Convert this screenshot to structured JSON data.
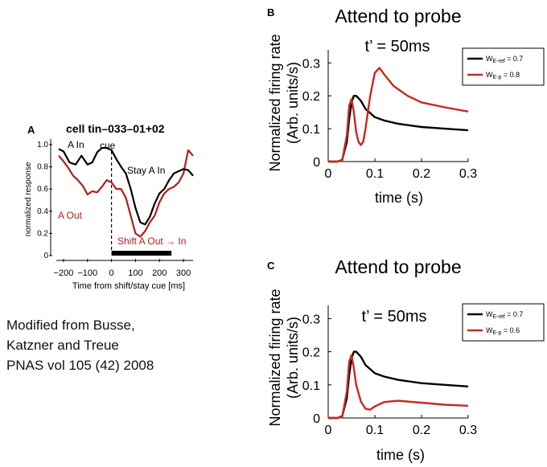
{
  "chart_data": [
    {
      "type": "line",
      "panel": "A",
      "title": "cell tin–033–01+02",
      "xlabel": "Time from shift/stay cue [ms]",
      "ylabel": "normalized response",
      "xlim": [
        -230,
        340
      ],
      "ylim": [
        0,
        1.05
      ],
      "xticks": [
        "−200",
        "−100",
        "0",
        "100",
        "200",
        "300"
      ],
      "yticks": [
        "0",
        "0.2",
        "0.4",
        "0.6",
        "0.8",
        "1.0"
      ],
      "series": [
        {
          "name": "A In / Stay A In",
          "color": "#000000",
          "x": [
            -220,
            -200,
            -175,
            -150,
            -125,
            -100,
            -80,
            -60,
            -40,
            -20,
            0,
            20,
            40,
            60,
            80,
            100,
            120,
            140,
            160,
            180,
            200,
            220,
            240,
            260,
            280,
            300,
            320,
            340
          ],
          "y": [
            0.96,
            0.94,
            0.84,
            0.82,
            0.9,
            0.82,
            0.84,
            0.93,
            0.97,
            0.97,
            0.95,
            0.87,
            0.8,
            0.74,
            0.6,
            0.43,
            0.3,
            0.28,
            0.35,
            0.47,
            0.56,
            0.6,
            0.68,
            0.74,
            0.76,
            0.78,
            0.77,
            0.72
          ]
        },
        {
          "name": "A Out / Shift A Out → In",
          "color": "#b01e1e",
          "x": [
            -220,
            -200,
            -180,
            -160,
            -140,
            -120,
            -100,
            -80,
            -60,
            -40,
            -20,
            0,
            20,
            40,
            60,
            80,
            100,
            120,
            140,
            160,
            180,
            200,
            220,
            240,
            260,
            280,
            300,
            320,
            340
          ],
          "y": [
            0.9,
            0.85,
            0.79,
            0.72,
            0.68,
            0.63,
            0.55,
            0.58,
            0.57,
            0.62,
            0.68,
            0.66,
            0.6,
            0.6,
            0.52,
            0.36,
            0.2,
            0.17,
            0.22,
            0.3,
            0.36,
            0.48,
            0.56,
            0.6,
            0.62,
            0.66,
            0.74,
            0.95,
            0.9
          ]
        }
      ],
      "annotations": [
        "A In",
        "cue",
        "Stay A In",
        "A Out",
        "Shift A Out → In"
      ],
      "shaded_interval_ms": [
        0,
        250
      ],
      "cue_line_ms": 0
    },
    {
      "type": "line",
      "panel": "B",
      "title": "Attend to probe",
      "subtitle": "t’ = 50ms",
      "xlabel": "time (s)",
      "ylabel": "Normalized firing rate (Arb. units/s)",
      "xlim": [
        0,
        0.3
      ],
      "ylim": [
        0,
        0.33
      ],
      "xticks": [
        "0",
        "0.1",
        "0.2",
        "0.3"
      ],
      "yticks": [
        "0",
        "0.1",
        "0.2",
        "0.3"
      ],
      "series": [
        {
          "name_prefix": "W",
          "name_sub": "E-ref",
          "name_suffix": " = 0.7",
          "color": "#000000",
          "x": [
            0,
            0.02,
            0.03,
            0.04,
            0.045,
            0.05,
            0.055,
            0.06,
            0.07,
            0.08,
            0.1,
            0.12,
            0.15,
            0.2,
            0.25,
            0.3
          ],
          "y": [
            0,
            0,
            0.005,
            0.06,
            0.13,
            0.18,
            0.2,
            0.2,
            0.185,
            0.16,
            0.135,
            0.125,
            0.115,
            0.105,
            0.1,
            0.095
          ]
        },
        {
          "name_prefix": "W",
          "name_sub": "E-p",
          "name_suffix": " = 0.8",
          "color": "#c8281e",
          "x": [
            0,
            0.02,
            0.03,
            0.04,
            0.045,
            0.05,
            0.055,
            0.06,
            0.065,
            0.07,
            0.075,
            0.08,
            0.09,
            0.1,
            0.11,
            0.12,
            0.14,
            0.17,
            0.2,
            0.25,
            0.3
          ],
          "y": [
            0,
            0,
            0.003,
            0.08,
            0.17,
            0.19,
            0.15,
            0.09,
            0.06,
            0.05,
            0.06,
            0.1,
            0.2,
            0.27,
            0.285,
            0.265,
            0.23,
            0.2,
            0.18,
            0.165,
            0.152
          ]
        }
      ]
    },
    {
      "type": "line",
      "panel": "C",
      "title": "Attend to probe",
      "subtitle": "t’ = 50ms",
      "xlabel": "time (s)",
      "ylabel": "Normalized firing rate (Arb. units/s)",
      "xlim": [
        0,
        0.3
      ],
      "ylim": [
        0,
        0.33
      ],
      "xticks": [
        "0",
        "0.1",
        "0.2",
        "0.3"
      ],
      "yticks": [
        "0",
        "0.1",
        "0.2",
        "0.3"
      ],
      "series": [
        {
          "name_prefix": "W",
          "name_sub": "E-ref",
          "name_suffix": " = 0.7",
          "color": "#000000",
          "x": [
            0,
            0.02,
            0.03,
            0.04,
            0.045,
            0.05,
            0.055,
            0.06,
            0.07,
            0.08,
            0.1,
            0.12,
            0.15,
            0.2,
            0.25,
            0.3
          ],
          "y": [
            0,
            0,
            0.005,
            0.06,
            0.13,
            0.18,
            0.2,
            0.2,
            0.185,
            0.16,
            0.135,
            0.125,
            0.115,
            0.105,
            0.1,
            0.095
          ]
        },
        {
          "name_prefix": "W",
          "name_sub": "E-p",
          "name_suffix": " = 0.6",
          "color": "#c8281e",
          "x": [
            0,
            0.02,
            0.03,
            0.04,
            0.045,
            0.05,
            0.055,
            0.06,
            0.07,
            0.08,
            0.09,
            0.1,
            0.12,
            0.15,
            0.2,
            0.25,
            0.3
          ],
          "y": [
            0,
            0,
            0.003,
            0.08,
            0.17,
            0.19,
            0.15,
            0.1,
            0.05,
            0.028,
            0.025,
            0.035,
            0.048,
            0.052,
            0.046,
            0.04,
            0.037
          ]
        }
      ]
    }
  ],
  "credit": [
    "Modified from Busse,",
    "Katzner and Treue",
    "PNAS vol 105 (42)  2008"
  ]
}
